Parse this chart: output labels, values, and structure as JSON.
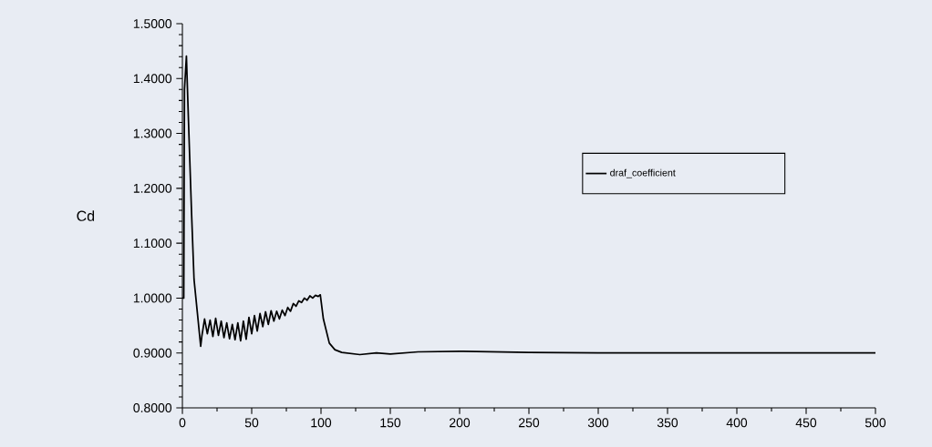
{
  "chart_data": {
    "type": "line",
    "ylabel": "Cd",
    "xlim": [
      0,
      500
    ],
    "ylim": [
      0.8,
      1.5
    ],
    "xticks": [
      0,
      50,
      100,
      150,
      200,
      250,
      300,
      350,
      400,
      450,
      500
    ],
    "yticks": [
      {
        "value": 0.8,
        "label": "0.8000"
      },
      {
        "value": 0.9,
        "label": "0.9000"
      },
      {
        "value": 1.0,
        "label": "1.0000"
      },
      {
        "value": 1.1,
        "label": "1.1000"
      },
      {
        "value": 1.2,
        "label": "1.2000"
      },
      {
        "value": 1.3,
        "label": "1.3000"
      },
      {
        "value": 1.4,
        "label": "1.4000"
      },
      {
        "value": 1.5,
        "label": "1.5000"
      }
    ],
    "grid": false,
    "legend": "right",
    "marker": "none",
    "line_style": "solid",
    "series": [
      {
        "name": "draf_coefficient",
        "color": "#000000",
        "x": [
          0,
          1,
          1.5,
          2.9,
          4.4,
          6.6,
          8.4,
          11,
          13.2,
          14,
          16,
          18,
          20,
          22,
          24,
          26,
          28,
          30,
          32,
          34,
          36,
          38,
          40,
          42,
          44,
          46,
          48,
          50,
          52,
          54,
          56,
          58,
          60,
          62,
          64,
          66,
          68,
          70,
          72,
          74,
          76,
          78,
          80,
          82,
          84,
          86,
          88,
          90,
          92,
          94,
          96,
          98,
          99.5,
          101.7,
          106,
          110,
          115,
          128,
          140,
          150,
          170,
          200,
          250,
          300,
          350,
          400,
          450,
          500
        ],
        "values": [
          1.0,
          1.0,
          1.38,
          1.441,
          1.322,
          1.156,
          1.034,
          0.968,
          0.912,
          0.93,
          0.962,
          0.935,
          0.96,
          0.93,
          0.963,
          0.932,
          0.958,
          0.928,
          0.955,
          0.926,
          0.952,
          0.924,
          0.955,
          0.922,
          0.958,
          0.925,
          0.965,
          0.935,
          0.968,
          0.94,
          0.972,
          0.948,
          0.975,
          0.952,
          0.977,
          0.958,
          0.976,
          0.962,
          0.978,
          0.968,
          0.983,
          0.976,
          0.99,
          0.985,
          0.995,
          0.992,
          1.0,
          0.996,
          1.004,
          1.0,
          1.005,
          1.003,
          1.006,
          0.962,
          0.918,
          0.906,
          0.901,
          0.897,
          0.9,
          0.898,
          0.902,
          0.903,
          0.901,
          0.9,
          0.9,
          0.9,
          0.9,
          0.9
        ]
      }
    ]
  }
}
